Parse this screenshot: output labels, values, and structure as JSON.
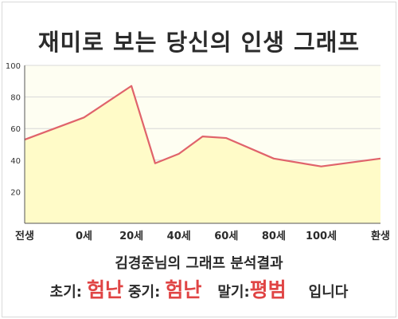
{
  "title": "재미로 보는 당신의 인생 그래프",
  "chart_data": {
    "type": "area",
    "x_categories": [
      "전생",
      "0세",
      "20세",
      "40세",
      "60세",
      "80세",
      "100세",
      "환생"
    ],
    "points": [
      {
        "x": "전생",
        "y": 53
      },
      {
        "x": "0세",
        "y": 67
      },
      {
        "x": "20세",
        "y": 87
      },
      {
        "x": "30세",
        "y": 38
      },
      {
        "x": "40세",
        "y": 44
      },
      {
        "x": "50세",
        "y": 55
      },
      {
        "x": "60세",
        "y": 54
      },
      {
        "x": "80세",
        "y": 41
      },
      {
        "x": "100세",
        "y": 36
      },
      {
        "x": "환생",
        "y": 41
      }
    ],
    "y_ticks": [
      20,
      40,
      60,
      80,
      100
    ],
    "ylim": [
      0,
      100
    ],
    "grid": true,
    "colors": {
      "line": "#e0636b",
      "fill": "#fffbc8",
      "grid": "#d8d8d8"
    }
  },
  "analysis": {
    "title": "김경준님의 그래프 분석결과",
    "early_label": "초기:",
    "early_value": "험난",
    "middle_label": "중기:",
    "middle_value": "험난",
    "late_label": "말기:",
    "late_value": "평범",
    "suffix": "입니다"
  }
}
